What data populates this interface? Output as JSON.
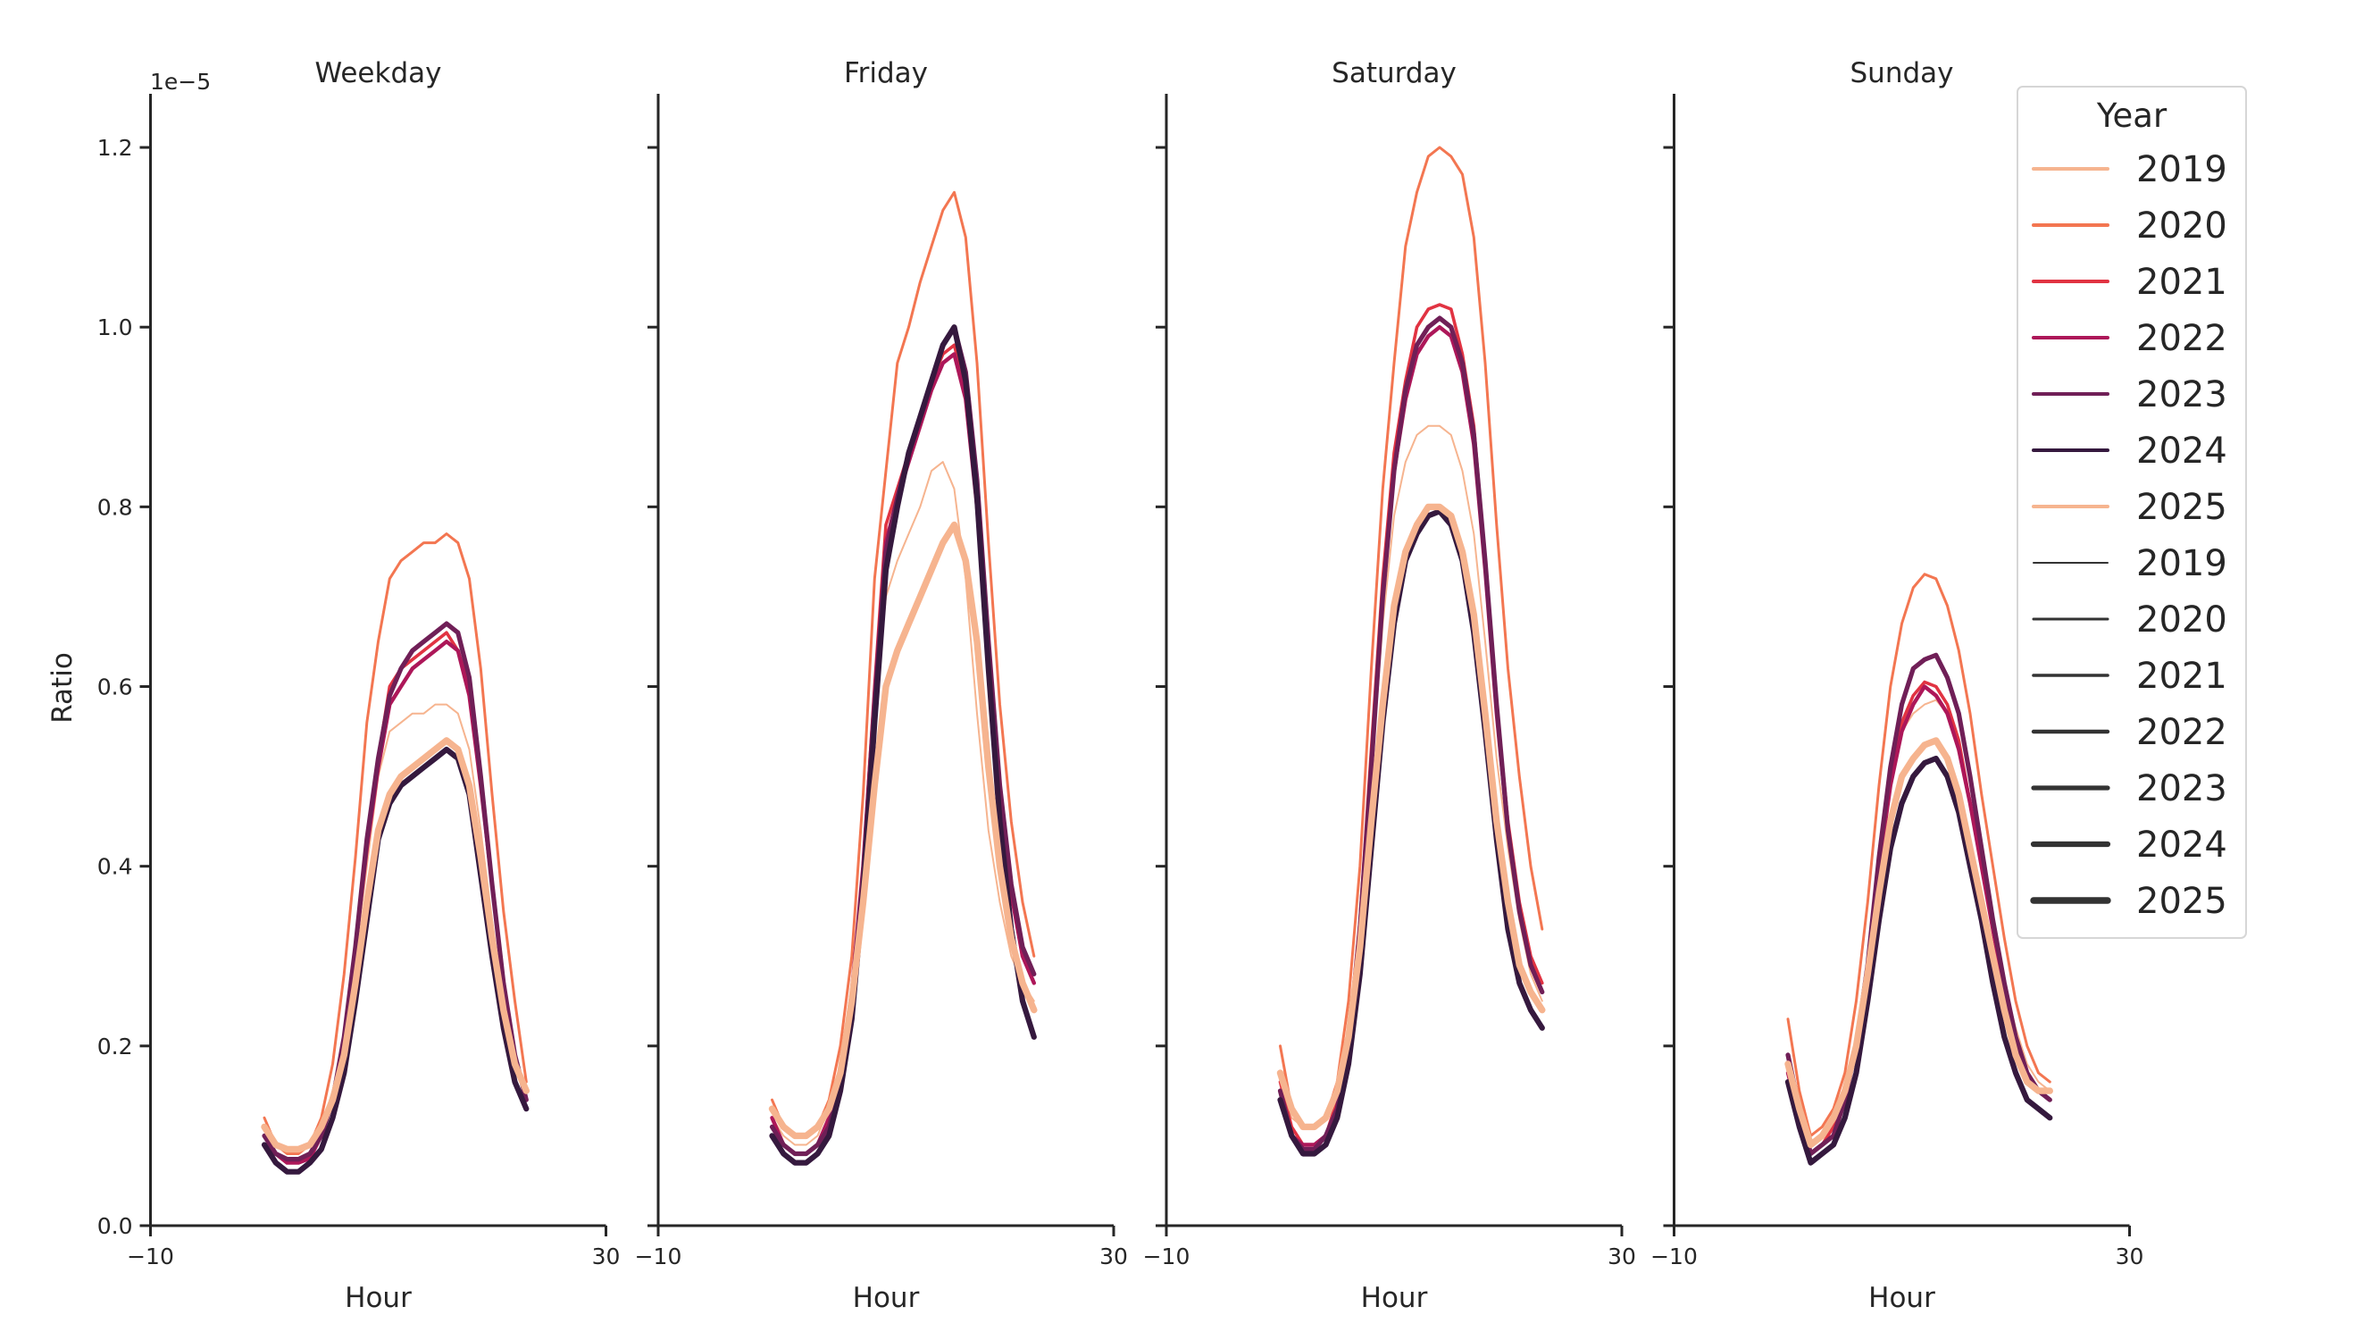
{
  "chart_data": {
    "type": "line",
    "xlabel": "Hour",
    "ylabel": "Ratio",
    "y_multiplier_label": "1e−5",
    "xlim": [
      -10,
      30
    ],
    "ylim": [
      0,
      1.26
    ],
    "xticks": [
      -10,
      30
    ],
    "xtick_labels": [
      "−10",
      "30"
    ],
    "yticks": [
      0,
      0.2,
      0.4,
      0.6,
      0.8,
      1.0,
      1.2
    ],
    "ytick_labels": [
      "0.0",
      "0.2",
      "0.4",
      "0.6",
      "0.8",
      "1.0",
      "1.2"
    ],
    "grid": false,
    "legend": {
      "title": "Year",
      "placement": "top-right",
      "hue_entries": [
        "2019",
        "2020",
        "2021",
        "2022",
        "2023",
        "2024",
        "2025"
      ],
      "size_entries": [
        "2019",
        "2020",
        "2021",
        "2022",
        "2023",
        "2024",
        "2025"
      ]
    },
    "colors": {
      "2019": "#f6b48f",
      "2020": "#f37651",
      "2021": "#e13342",
      "2022": "#ad1759",
      "2023": "#701f57",
      "2024": "#35193e",
      "2025": "#f6b48f",
      "size_legend": "#333333"
    },
    "x": [
      0,
      1,
      2,
      3,
      4,
      5,
      6,
      7,
      8,
      9,
      10,
      11,
      12,
      13,
      14,
      15,
      16,
      17,
      18,
      19,
      20,
      21,
      22,
      23
    ],
    "panels": [
      {
        "title": "Weekday",
        "series": [
          {
            "name": "2019",
            "values": [
              0.11,
              0.09,
              0.085,
              0.085,
              0.09,
              0.11,
              0.15,
              0.21,
              0.3,
              0.4,
              0.5,
              0.55,
              0.56,
              0.57,
              0.57,
              0.58,
              0.58,
              0.57,
              0.53,
              0.44,
              0.34,
              0.25,
              0.19,
              0.15
            ]
          },
          {
            "name": "2020",
            "values": [
              0.12,
              0.09,
              0.08,
              0.08,
              0.09,
              0.12,
              0.18,
              0.28,
              0.41,
              0.56,
              0.65,
              0.72,
              0.74,
              0.75,
              0.76,
              0.76,
              0.77,
              0.76,
              0.72,
              0.62,
              0.48,
              0.35,
              0.25,
              0.16
            ]
          },
          {
            "name": "2021",
            "values": [
              0.1,
              0.08,
              0.07,
              0.07,
              0.075,
              0.1,
              0.14,
              0.21,
              0.31,
              0.43,
              0.52,
              0.6,
              0.62,
              0.63,
              0.64,
              0.65,
              0.66,
              0.64,
              0.6,
              0.49,
              0.38,
              0.27,
              0.19,
              0.14
            ]
          },
          {
            "name": "2022",
            "values": [
              0.1,
              0.08,
              0.07,
              0.07,
              0.075,
              0.1,
              0.14,
              0.21,
              0.31,
              0.42,
              0.51,
              0.58,
              0.6,
              0.62,
              0.63,
              0.64,
              0.65,
              0.64,
              0.59,
              0.49,
              0.38,
              0.27,
              0.19,
              0.14
            ]
          },
          {
            "name": "2023",
            "values": [
              0.1,
              0.08,
              0.074,
              0.074,
              0.08,
              0.1,
              0.14,
              0.21,
              0.31,
              0.43,
              0.52,
              0.59,
              0.62,
              0.64,
              0.65,
              0.66,
              0.67,
              0.66,
              0.61,
              0.5,
              0.38,
              0.27,
              0.19,
              0.14
            ]
          },
          {
            "name": "2024",
            "values": [
              0.09,
              0.07,
              0.06,
              0.06,
              0.07,
              0.085,
              0.12,
              0.17,
              0.25,
              0.34,
              0.43,
              0.47,
              0.49,
              0.5,
              0.51,
              0.52,
              0.53,
              0.52,
              0.48,
              0.39,
              0.3,
              0.22,
              0.16,
              0.13
            ]
          },
          {
            "name": "2025",
            "values": [
              0.11,
              0.09,
              0.085,
              0.085,
              0.09,
              0.11,
              0.14,
              0.19,
              0.27,
              0.36,
              0.44,
              0.48,
              0.5,
              0.51,
              0.52,
              0.53,
              0.54,
              0.53,
              0.49,
              0.41,
              0.32,
              0.24,
              0.18,
              0.15
            ]
          }
        ]
      },
      {
        "title": "Friday",
        "series": [
          {
            "name": "2019",
            "values": [
              0.12,
              0.1,
              0.09,
              0.09,
              0.1,
              0.13,
              0.18,
              0.27,
              0.41,
              0.57,
              0.7,
              0.74,
              0.77,
              0.8,
              0.84,
              0.85,
              0.82,
              0.72,
              0.57,
              0.44,
              0.36,
              0.3,
              0.27,
              0.25
            ]
          },
          {
            "name": "2020",
            "values": [
              0.14,
              0.11,
              0.1,
              0.1,
              0.11,
              0.14,
              0.2,
              0.3,
              0.48,
              0.72,
              0.84,
              0.96,
              1.0,
              1.05,
              1.09,
              1.13,
              1.15,
              1.1,
              0.96,
              0.76,
              0.58,
              0.45,
              0.36,
              0.3
            ]
          },
          {
            "name": "2021",
            "values": [
              0.12,
              0.09,
              0.08,
              0.08,
              0.09,
              0.12,
              0.17,
              0.26,
              0.4,
              0.6,
              0.78,
              0.82,
              0.86,
              0.9,
              0.94,
              0.97,
              0.98,
              0.93,
              0.8,
              0.62,
              0.47,
              0.37,
              0.3,
              0.27
            ]
          },
          {
            "name": "2022",
            "values": [
              0.12,
              0.09,
              0.08,
              0.08,
              0.09,
              0.12,
              0.17,
              0.26,
              0.4,
              0.59,
              0.76,
              0.81,
              0.85,
              0.89,
              0.93,
              0.96,
              0.97,
              0.92,
              0.8,
              0.62,
              0.47,
              0.37,
              0.3,
              0.27
            ]
          },
          {
            "name": "2023",
            "values": [
              0.11,
              0.09,
              0.08,
              0.08,
              0.09,
              0.11,
              0.16,
              0.25,
              0.39,
              0.58,
              0.75,
              0.81,
              0.86,
              0.9,
              0.94,
              0.98,
              1.0,
              0.95,
              0.83,
              0.65,
              0.49,
              0.38,
              0.31,
              0.28
            ]
          },
          {
            "name": "2024",
            "values": [
              0.1,
              0.08,
              0.07,
              0.07,
              0.08,
              0.1,
              0.15,
              0.23,
              0.37,
              0.56,
              0.73,
              0.8,
              0.86,
              0.9,
              0.94,
              0.98,
              1.0,
              0.94,
              0.81,
              0.62,
              0.45,
              0.33,
              0.25,
              0.21
            ]
          },
          {
            "name": "2025",
            "values": [
              0.13,
              0.11,
              0.1,
              0.1,
              0.11,
              0.13,
              0.17,
              0.25,
              0.36,
              0.49,
              0.6,
              0.64,
              0.67,
              0.7,
              0.73,
              0.76,
              0.78,
              0.74,
              0.65,
              0.51,
              0.4,
              0.32,
              0.27,
              0.24
            ]
          }
        ]
      },
      {
        "title": "Saturday",
        "series": [
          {
            "name": "2019",
            "values": [
              0.17,
              0.12,
              0.11,
              0.11,
              0.12,
              0.15,
              0.22,
              0.34,
              0.5,
              0.67,
              0.79,
              0.85,
              0.88,
              0.89,
              0.89,
              0.88,
              0.84,
              0.77,
              0.65,
              0.52,
              0.42,
              0.34,
              0.28,
              0.25
            ]
          },
          {
            "name": "2020",
            "values": [
              0.2,
              0.13,
              0.11,
              0.11,
              0.12,
              0.16,
              0.25,
              0.4,
              0.62,
              0.82,
              0.96,
              1.09,
              1.15,
              1.19,
              1.2,
              1.19,
              1.17,
              1.1,
              0.96,
              0.78,
              0.62,
              0.5,
              0.4,
              0.33
            ]
          },
          {
            "name": "2021",
            "values": [
              0.16,
              0.11,
              0.09,
              0.09,
              0.1,
              0.14,
              0.21,
              0.34,
              0.53,
              0.72,
              0.86,
              0.94,
              1.0,
              1.02,
              1.025,
              1.02,
              0.97,
              0.89,
              0.74,
              0.58,
              0.45,
              0.36,
              0.3,
              0.27
            ]
          },
          {
            "name": "2022",
            "values": [
              0.15,
              0.1,
              0.09,
              0.09,
              0.1,
              0.13,
              0.2,
              0.33,
              0.51,
              0.7,
              0.84,
              0.92,
              0.97,
              0.99,
              1.0,
              0.99,
              0.95,
              0.87,
              0.73,
              0.57,
              0.44,
              0.35,
              0.29,
              0.26
            ]
          },
          {
            "name": "2023",
            "values": [
              0.15,
              0.1,
              0.085,
              0.085,
              0.1,
              0.13,
              0.2,
              0.33,
              0.51,
              0.7,
              0.84,
              0.93,
              0.98,
              1.0,
              1.01,
              1.0,
              0.96,
              0.88,
              0.74,
              0.58,
              0.44,
              0.35,
              0.29,
              0.26
            ]
          },
          {
            "name": "2024",
            "values": [
              0.14,
              0.1,
              0.08,
              0.08,
              0.09,
              0.12,
              0.18,
              0.28,
              0.42,
              0.56,
              0.67,
              0.74,
              0.77,
              0.79,
              0.795,
              0.78,
              0.74,
              0.66,
              0.55,
              0.43,
              0.33,
              0.27,
              0.24,
              0.22
            ]
          },
          {
            "name": "2025",
            "values": [
              0.17,
              0.13,
              0.11,
              0.11,
              0.12,
              0.15,
              0.21,
              0.31,
              0.45,
              0.58,
              0.69,
              0.75,
              0.78,
              0.8,
              0.8,
              0.79,
              0.75,
              0.68,
              0.57,
              0.45,
              0.36,
              0.29,
              0.26,
              0.24
            ]
          }
        ]
      },
      {
        "title": "Sunday",
        "series": [
          {
            "name": "2019",
            "values": [
              0.18,
              0.13,
              0.09,
              0.1,
              0.12,
              0.15,
              0.21,
              0.3,
              0.4,
              0.49,
              0.55,
              0.57,
              0.58,
              0.585,
              0.57,
              0.53,
              0.47,
              0.4,
              0.33,
              0.27,
              0.22,
              0.18,
              0.16,
              0.15
            ]
          },
          {
            "name": "2020",
            "values": [
              0.23,
              0.15,
              0.1,
              0.11,
              0.13,
              0.17,
              0.25,
              0.36,
              0.49,
              0.6,
              0.67,
              0.71,
              0.725,
              0.72,
              0.69,
              0.64,
              0.57,
              0.48,
              0.4,
              0.32,
              0.25,
              0.2,
              0.17,
              0.16
            ]
          },
          {
            "name": "2021",
            "values": [
              0.17,
              0.12,
              0.08,
              0.09,
              0.11,
              0.14,
              0.2,
              0.29,
              0.4,
              0.5,
              0.56,
              0.59,
              0.605,
              0.6,
              0.58,
              0.54,
              0.47,
              0.4,
              0.33,
              0.26,
              0.21,
              0.17,
              0.15,
              0.14
            ]
          },
          {
            "name": "2022",
            "values": [
              0.17,
              0.12,
              0.08,
              0.09,
              0.1,
              0.14,
              0.2,
              0.29,
              0.4,
              0.49,
              0.55,
              0.58,
              0.6,
              0.59,
              0.57,
              0.53,
              0.47,
              0.4,
              0.33,
              0.26,
              0.21,
              0.17,
              0.15,
              0.14
            ]
          },
          {
            "name": "2023",
            "values": [
              0.19,
              0.13,
              0.08,
              0.09,
              0.1,
              0.14,
              0.2,
              0.29,
              0.41,
              0.51,
              0.58,
              0.62,
              0.63,
              0.635,
              0.61,
              0.57,
              0.5,
              0.42,
              0.34,
              0.27,
              0.21,
              0.17,
              0.15,
              0.14
            ]
          },
          {
            "name": "2024",
            "values": [
              0.16,
              0.11,
              0.07,
              0.08,
              0.09,
              0.12,
              0.17,
              0.25,
              0.34,
              0.42,
              0.47,
              0.5,
              0.515,
              0.52,
              0.5,
              0.46,
              0.4,
              0.34,
              0.27,
              0.21,
              0.17,
              0.14,
              0.13,
              0.12
            ]
          },
          {
            "name": "2025",
            "values": [
              0.18,
              0.13,
              0.09,
              0.1,
              0.12,
              0.15,
              0.2,
              0.28,
              0.37,
              0.45,
              0.5,
              0.52,
              0.535,
              0.54,
              0.52,
              0.48,
              0.42,
              0.36,
              0.3,
              0.24,
              0.19,
              0.16,
              0.15,
              0.15
            ]
          }
        ]
      }
    ]
  }
}
